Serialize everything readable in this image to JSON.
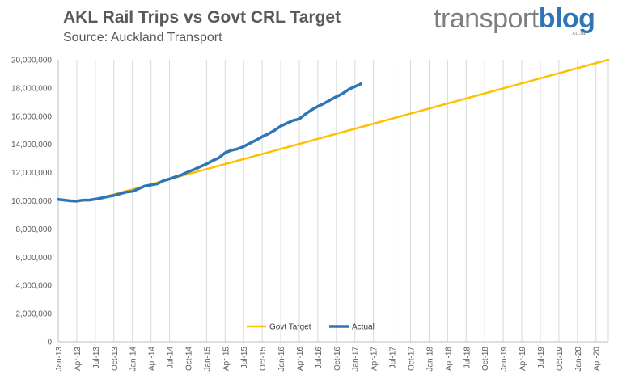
{
  "header": {
    "title": "AKL Rail Trips vs Govt CRL Target",
    "subtitle": "Source: Auckland Transport"
  },
  "logo": {
    "part1": "transport",
    "part2": "blog",
    "suffix": ".co.nz",
    "colors": {
      "part1": "#7f7f7f",
      "part2": "#2f75b5"
    }
  },
  "chart_data": {
    "type": "line",
    "title": "AKL Rail Trips vs Govt CRL Target",
    "subtitle": "Source: Auckland Transport",
    "x_axis_type": "month",
    "xlim": [
      "2013-01",
      "2020-06"
    ],
    "ylim": [
      0,
      20000000
    ],
    "y_ticks": [
      0,
      2000000,
      4000000,
      6000000,
      8000000,
      10000000,
      12000000,
      14000000,
      16000000,
      18000000,
      20000000
    ],
    "y_tick_labels": [
      "0",
      "2,000,000",
      "4,000,000",
      "6,000,000",
      "8,000,000",
      "10,000,000",
      "12,000,000",
      "14,000,000",
      "16,000,000",
      "18,000,000",
      "20,000,000"
    ],
    "x_ticks": [
      "2013-01",
      "2013-04",
      "2013-07",
      "2013-10",
      "2014-01",
      "2014-04",
      "2014-07",
      "2014-10",
      "2015-01",
      "2015-04",
      "2015-07",
      "2015-10",
      "2016-01",
      "2016-04",
      "2016-07",
      "2016-10",
      "2017-01",
      "2017-04",
      "2017-07",
      "2017-10",
      "2018-01",
      "2018-04",
      "2018-07",
      "2018-10",
      "2019-01",
      "2019-04",
      "2019-07",
      "2019-10",
      "2020-01",
      "2020-04"
    ],
    "x_tick_labels": [
      "Jan-13",
      "Apr-13",
      "Jul-13",
      "Oct-13",
      "Jan-14",
      "Apr-14",
      "Jul-14",
      "Oct-14",
      "Jan-15",
      "Apr-15",
      "Jul-15",
      "Oct-15",
      "Jan-16",
      "Apr-16",
      "Jul-16",
      "Oct-16",
      "Jan-17",
      "Apr-17",
      "Jul-17",
      "Oct-17",
      "Jan-18",
      "Apr-18",
      "Jul-18",
      "Oct-18",
      "Jan-19",
      "Apr-19",
      "Jul-19",
      "Oct-19",
      "Jan-20",
      "Apr-20"
    ],
    "grid": {
      "vertical": true,
      "horizontal": false
    },
    "legend": {
      "position": "bottom-center"
    },
    "series": [
      {
        "name": "Govt Target",
        "color": "#ffc000",
        "points": [
          {
            "x": "2013-07",
            "y": 10100000
          },
          {
            "x": "2020-06",
            "y": 20000000
          }
        ]
      },
      {
        "name": "Actual",
        "color": "#2e75b6",
        "points": [
          {
            "x": "2013-01",
            "y": 10100000
          },
          {
            "x": "2013-02",
            "y": 10050000
          },
          {
            "x": "2013-03",
            "y": 10000000
          },
          {
            "x": "2013-04",
            "y": 9980000
          },
          {
            "x": "2013-05",
            "y": 10050000
          },
          {
            "x": "2013-06",
            "y": 10050000
          },
          {
            "x": "2013-07",
            "y": 10120000
          },
          {
            "x": "2013-08",
            "y": 10200000
          },
          {
            "x": "2013-09",
            "y": 10300000
          },
          {
            "x": "2013-10",
            "y": 10380000
          },
          {
            "x": "2013-11",
            "y": 10500000
          },
          {
            "x": "2013-12",
            "y": 10620000
          },
          {
            "x": "2014-01",
            "y": 10670000
          },
          {
            "x": "2014-02",
            "y": 10850000
          },
          {
            "x": "2014-03",
            "y": 11050000
          },
          {
            "x": "2014-04",
            "y": 11120000
          },
          {
            "x": "2014-05",
            "y": 11200000
          },
          {
            "x": "2014-06",
            "y": 11420000
          },
          {
            "x": "2014-07",
            "y": 11550000
          },
          {
            "x": "2014-08",
            "y": 11700000
          },
          {
            "x": "2014-09",
            "y": 11850000
          },
          {
            "x": "2014-10",
            "y": 12050000
          },
          {
            "x": "2014-11",
            "y": 12220000
          },
          {
            "x": "2014-12",
            "y": 12420000
          },
          {
            "x": "2015-01",
            "y": 12620000
          },
          {
            "x": "2015-02",
            "y": 12850000
          },
          {
            "x": "2015-03",
            "y": 13050000
          },
          {
            "x": "2015-04",
            "y": 13400000
          },
          {
            "x": "2015-05",
            "y": 13580000
          },
          {
            "x": "2015-06",
            "y": 13680000
          },
          {
            "x": "2015-07",
            "y": 13850000
          },
          {
            "x": "2015-08",
            "y": 14080000
          },
          {
            "x": "2015-09",
            "y": 14300000
          },
          {
            "x": "2015-10",
            "y": 14550000
          },
          {
            "x": "2015-11",
            "y": 14750000
          },
          {
            "x": "2015-12",
            "y": 15000000
          },
          {
            "x": "2016-01",
            "y": 15300000
          },
          {
            "x": "2016-02",
            "y": 15500000
          },
          {
            "x": "2016-03",
            "y": 15700000
          },
          {
            "x": "2016-04",
            "y": 15800000
          },
          {
            "x": "2016-05",
            "y": 16150000
          },
          {
            "x": "2016-06",
            "y": 16450000
          },
          {
            "x": "2016-07",
            "y": 16700000
          },
          {
            "x": "2016-08",
            "y": 16900000
          },
          {
            "x": "2016-09",
            "y": 17150000
          },
          {
            "x": "2016-10",
            "y": 17380000
          },
          {
            "x": "2016-11",
            "y": 17600000
          },
          {
            "x": "2016-12",
            "y": 17900000
          },
          {
            "x": "2017-01",
            "y": 18100000
          },
          {
            "x": "2017-02",
            "y": 18300000
          }
        ]
      }
    ]
  }
}
